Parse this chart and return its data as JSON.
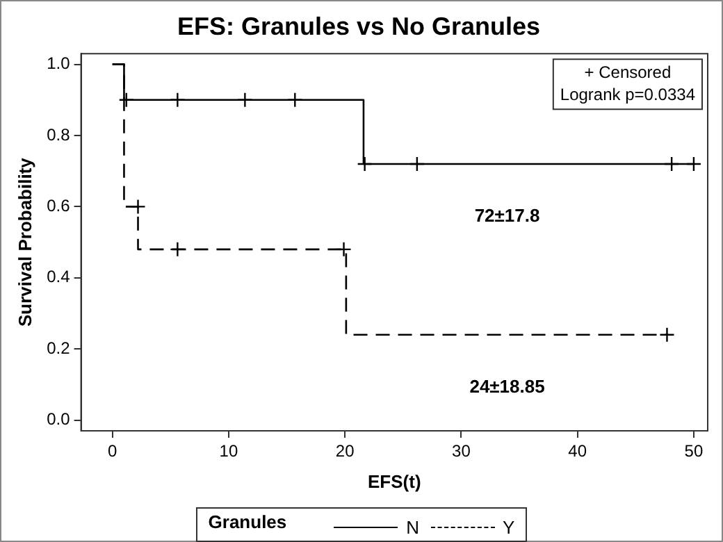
{
  "chart_data": {
    "type": "step",
    "title": "EFS: Granules vs No Granules",
    "xlabel": "EFS(t)",
    "ylabel": "Survival Probability",
    "legend_title": "Granules",
    "series": [
      {
        "name": "N",
        "color": "#000000",
        "line_style": "solid",
        "x": [
          0,
          1,
          21.6,
          50
        ],
        "values": [
          1,
          0.9,
          0.72,
          0.72
        ]
      },
      {
        "name": "Y",
        "color": "#000000",
        "line_style": "dashed",
        "x": [
          0,
          1,
          2.2,
          20.1,
          47.8
        ],
        "values": [
          1,
          0.6,
          0.48,
          0.24,
          0.24
        ]
      },
      {
        "type": "scatter",
        "marker": "cross",
        "color": "#000000",
        "x": [
          1.2,
          5.6,
          11.4,
          15.7,
          21.7,
          26.2,
          48.1,
          50
        ],
        "values": [
          0.9,
          0.9,
          0.9,
          0.9,
          0.72,
          0.72,
          0.72,
          0.72
        ]
      },
      {
        "type": "scatter",
        "marker": "cross",
        "color": "#000000",
        "x": [
          2.2,
          5.6,
          19.9,
          47.7
        ],
        "values": [
          0.6,
          0.48,
          0.48,
          0.24
        ]
      }
    ],
    "xlim": [
      -2.7,
      51.2
    ],
    "xticks": [
      0,
      10,
      20,
      30,
      40,
      50
    ],
    "ylim": [
      -0.03,
      1.03
    ],
    "yticks": [
      {
        "value": 0,
        "label": "0.0"
      },
      {
        "value": 0.2,
        "label": "0.2"
      },
      {
        "value": 0.4,
        "label": "0.4"
      },
      {
        "value": 0.6,
        "label": "0.6"
      },
      {
        "value": 0.8,
        "label": "0.8"
      },
      {
        "value": 1,
        "label": "1.0"
      }
    ],
    "grid": false,
    "legend": "bottom",
    "annotations": [
      "+ Censored",
      "Logrank p=0.0334",
      "72±17.8",
      "24±18.85"
    ]
  }
}
